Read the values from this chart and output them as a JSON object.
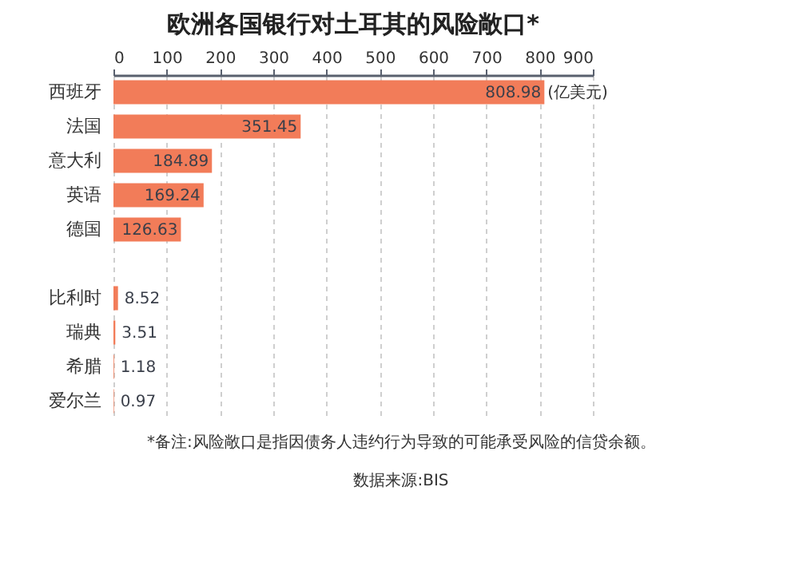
{
  "chart_data": {
    "type": "bar",
    "orientation": "horizontal",
    "title": "欧洲各国银行对土耳其的风险敞口*",
    "categories": [
      "西班牙",
      "法国",
      "意大利",
      "英语",
      "德国",
      null,
      "比利时",
      "瑞典",
      "希腊",
      "爱尔兰"
    ],
    "values": [
      808.98,
      351.45,
      184.89,
      169.24,
      126.63,
      null,
      8.52,
      3.51,
      1.18,
      0.97
    ],
    "color": "#f27c59",
    "data_labels": true,
    "xlim": [
      0,
      900
    ],
    "xticks": [
      0,
      100,
      200,
      300,
      400,
      500,
      600,
      700,
      800,
      900
    ],
    "grid": "x",
    "annotations": [
      {
        "text": "(亿美元)",
        "x": 808.98,
        "y": "西班牙"
      },
      "*备注:风险敞口是指因债务人违约行为导致的可能承受风险的信贷余额。",
      "数据来源:BIS"
    ]
  }
}
